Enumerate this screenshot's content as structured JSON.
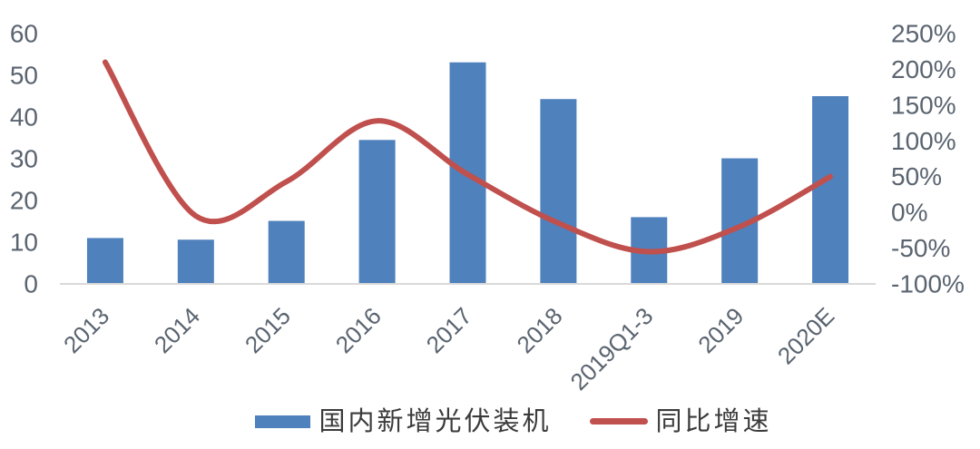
{
  "chart_data": {
    "type": "bar+line-combo",
    "title": "",
    "categories": [
      "2013",
      "2014",
      "2015",
      "2016",
      "2017",
      "2018",
      "2019Q1-3",
      "2019",
      "2020E"
    ],
    "series": [
      {
        "name": "国内新增光伏装机",
        "type": "bar",
        "axis": "left",
        "color": "#4F81BD",
        "values": [
          11,
          10.6,
          15.1,
          34.5,
          53.1,
          44.3,
          16,
          30.1,
          45
        ]
      },
      {
        "name": "同比增速",
        "type": "line",
        "axis": "right",
        "color": "#C0504D",
        "smooth": true,
        "values": [
          210,
          -5,
          43,
          128,
          53,
          -15,
          -55,
          -20,
          50
        ]
      }
    ],
    "left_axis": {
      "min": 0,
      "max": 60,
      "step": 10,
      "tick_values": [
        60,
        50,
        40,
        30,
        20,
        10,
        0
      ],
      "tick_labels": [
        "60",
        "50",
        "40",
        "30",
        "20",
        "10",
        "0"
      ]
    },
    "right_axis": {
      "min": -100,
      "max": 250,
      "step": 50,
      "tick_values": [
        250,
        200,
        150,
        100,
        50,
        0,
        -50,
        -100
      ],
      "tick_labels": [
        "250%",
        "200%",
        "150%",
        "100%",
        "50%",
        "0%",
        "-50%",
        "-100%"
      ]
    },
    "grid": "off",
    "legend_position": "bottom",
    "x_label_rotation_deg": -45,
    "styles": {
      "axis_label_color": "#5A6470",
      "axis_line_color": "#D9D9D9",
      "background": "#FFFFFF"
    }
  }
}
